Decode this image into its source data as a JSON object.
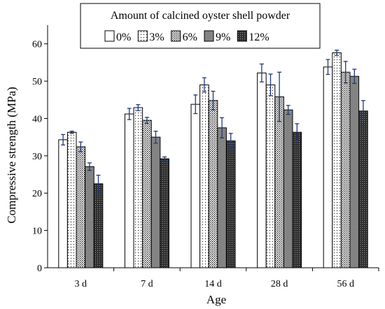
{
  "chart_data": {
    "type": "bar",
    "xlabel": "Age",
    "ylabel": "Compressive strength (MPa)",
    "ylim": [
      0,
      65
    ],
    "yticks": [
      0,
      10,
      20,
      30,
      40,
      50,
      60
    ],
    "categories": [
      "3 d",
      "7 d",
      "14 d",
      "28 d",
      "56 d"
    ],
    "legend": {
      "title": "Amount of calcined oyster shell powder",
      "placement": "top"
    },
    "series": [
      {
        "name": "0%",
        "pattern": "white",
        "values": [
          34.3,
          41.2,
          43.8,
          52.2,
          53.8
        ],
        "errors": [
          1.4,
          1.5,
          2.5,
          2.4,
          2.0
        ]
      },
      {
        "name": "3%",
        "pattern": "dots-sparse",
        "values": [
          36.3,
          42.9,
          49.0,
          49.0,
          57.6
        ],
        "errors": [
          0.3,
          0.8,
          1.9,
          2.9,
          0.7
        ]
      },
      {
        "name": "6%",
        "pattern": "dots-dense",
        "values": [
          32.4,
          39.5,
          44.8,
          45.8,
          52.4
        ],
        "errors": [
          1.3,
          0.8,
          2.5,
          6.6,
          2.9
        ]
      },
      {
        "name": "9%",
        "pattern": "gray",
        "values": [
          27.1,
          35.0,
          37.5,
          42.3,
          51.3
        ],
        "errors": [
          1.0,
          1.6,
          2.7,
          1.2,
          1.9
        ]
      },
      {
        "name": "12%",
        "pattern": "dark",
        "values": [
          22.5,
          29.2,
          34.0,
          36.3,
          42.0
        ],
        "errors": [
          2.3,
          0.5,
          2.0,
          2.3,
          2.8
        ]
      }
    ],
    "colors": {
      "bar_edge": "#000000",
      "error_bar": "#1f3a78",
      "gray_fill": "#8a8a8a",
      "dark_fill": "#3a3a3a"
    }
  }
}
